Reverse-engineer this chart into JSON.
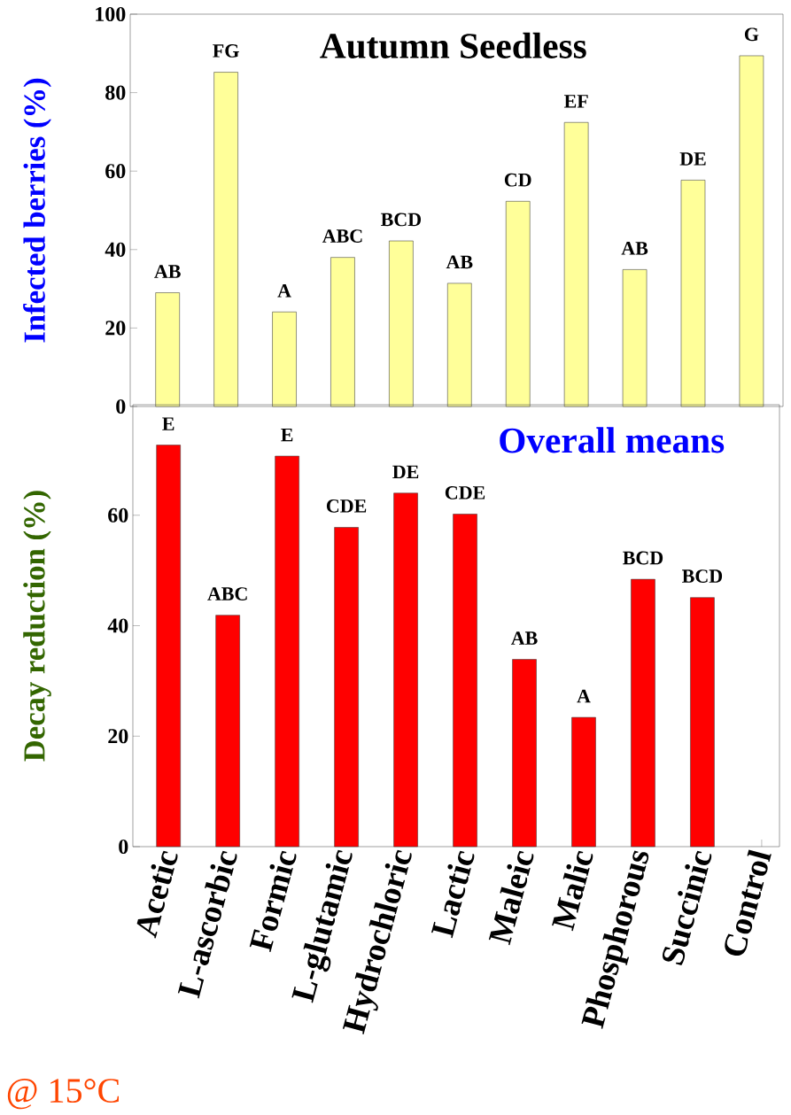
{
  "chart_data": [
    {
      "type": "bar",
      "title": "Autumn Seedless",
      "ylabel": "Infected berries (%)",
      "categories": [
        null,
        null,
        null,
        null,
        null,
        null,
        null,
        null,
        null,
        null,
        null
      ],
      "values": [
        29.0,
        85.2,
        24.1,
        38.0,
        42.2,
        31.4,
        52.3,
        72.4,
        34.9,
        57.7,
        89.4
      ],
      "value_labels": [
        "AB",
        "FG",
        "A",
        "ABC",
        "BCD",
        "AB",
        "CD",
        "EF",
        "AB",
        "DE",
        "G"
      ],
      "color": "#ffff99",
      "ylim": [
        0,
        100
      ],
      "yticks": [
        0,
        20,
        40,
        60,
        80,
        100
      ],
      "tick_labels": "y"
    },
    {
      "type": "bar",
      "title": "Overall means",
      "ylabel": "Decay reduction (%)",
      "categories": [
        "Acetic",
        "L-ascorbic",
        "Formic",
        "L-glutamic",
        "Hydrochloric",
        "Lactic",
        "Maleic",
        "Malic",
        "Phosphorous",
        "Succinic",
        "Control"
      ],
      "values": [
        72.7,
        41.9,
        70.7,
        57.8,
        64.0,
        60.2,
        33.9,
        23.4,
        48.4,
        45.1,
        null
      ],
      "value_labels": [
        "E",
        "ABC",
        "E",
        "CDE",
        "DE",
        "CDE",
        "AB",
        "A",
        "BCD",
        "BCD",
        null
      ],
      "color": "#ff0000",
      "ylim": [
        0,
        80
      ],
      "yticks": [
        0,
        20,
        40,
        60
      ],
      "annotations": [
        "@ 15°C"
      ]
    }
  ]
}
